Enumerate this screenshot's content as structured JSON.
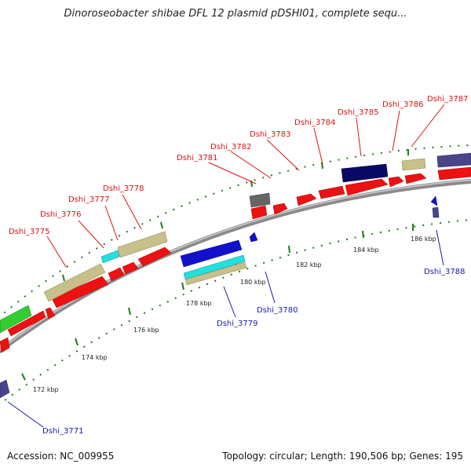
{
  "title": "Dinoroseobacter shibae DFL 12 plasmid pDSHI01, complete sequ...",
  "footer": {
    "accession": "Accession: NC_009955",
    "summary": "Topology: circular; Length: 190,506 bp; Genes: 195"
  },
  "colors": {
    "forward_cds": "#ee1111",
    "reverse_cds": "#1111cc",
    "backbone": "#8a8a8a",
    "tick": "#1f7a1f",
    "khaki": "#c8c08a",
    "cyan": "#22e0e0",
    "green": "#33cc33",
    "navy": "#0a0a66",
    "slate": "#4a4488",
    "grey": "#666666"
  },
  "kbp_labels": [
    "172 kbp",
    "174 kbp",
    "176 kbp",
    "178 kbp",
    "180 kbp",
    "182 kbp",
    "184 kbp",
    "186 kbp"
  ],
  "genes_top": [
    "Dshi_3775",
    "Dshi_3776",
    "Dshi_3777",
    "Dshi_3778",
    "Dshi_3781",
    "Dshi_3782",
    "Dshi_3783",
    "Dshi_3784",
    "Dshi_3785",
    "Dshi_3786",
    "Dshi_3787"
  ],
  "genes_bottom": [
    "Dshi_3771",
    "Dshi_3779",
    "Dshi_3780",
    "Dshi_3788"
  ]
}
